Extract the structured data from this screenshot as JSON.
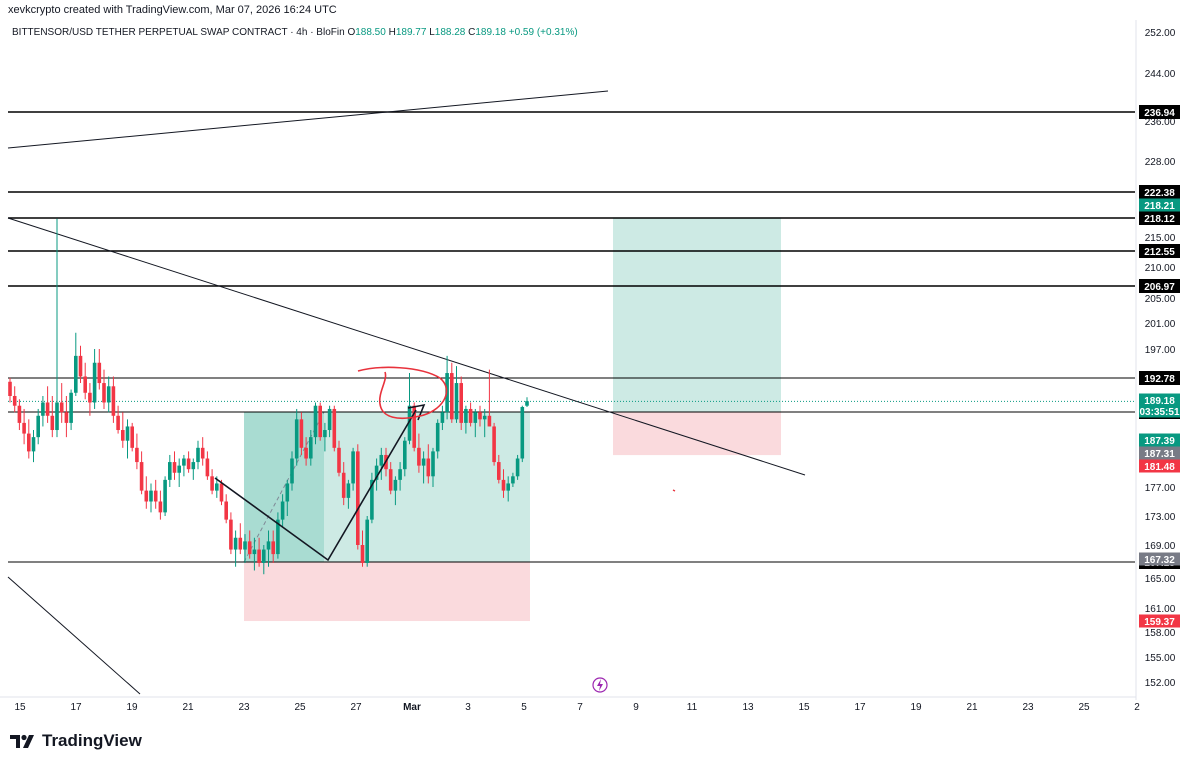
{
  "header": {
    "author_line": "xevkcrypto created with TradingView.com, Mar 07, 2026 16:24 UTC"
  },
  "symbol": {
    "name": "BITTENSOR/USD TETHER PERPETUAL SWAP CONTRACT · 4h · BloFin",
    "open_label": "O",
    "open": "188.50",
    "high_label": "H",
    "high": "189.77",
    "low_label": "L",
    "low": "188.28",
    "close_label": "C",
    "close": "189.18",
    "change": "+0.59 (+0.31%)"
  },
  "logo": {
    "text": "TradingView"
  },
  "colors": {
    "up": "#089981",
    "down": "#f23645",
    "target_zone": "#cdeae4",
    "stop_zone": "#fadadd",
    "drawing": "#131722",
    "annotation": "#e8323c"
  },
  "chart_data": {
    "type": "candlestick",
    "timeframe": "4h",
    "y_axis_ticks": [
      "252.00",
      "244.00",
      "236.00",
      "228.00",
      "222.00",
      "218.00",
      "215.00",
      "210.00",
      "205.00",
      "201.00",
      "197.00",
      "193.00",
      "177.00",
      "173.00",
      "169.00",
      "165.00",
      "161.00",
      "158.00",
      "155.00",
      "152.00"
    ],
    "x_axis_ticks": [
      "15",
      "17",
      "19",
      "21",
      "23",
      "25",
      "27",
      "Mar",
      "3",
      "5",
      "7",
      "9",
      "11",
      "13",
      "15",
      "17",
      "19",
      "21",
      "23",
      "25",
      "2"
    ],
    "horizontal_levels": [
      {
        "value": 236.94,
        "label": "236.94",
        "style": "black"
      },
      {
        "value": 222.38,
        "label": "222.38",
        "style": "black"
      },
      {
        "value": 218.12,
        "label": "218.12",
        "style": "black"
      },
      {
        "value": 212.55,
        "label": "212.55",
        "style": "black"
      },
      {
        "value": 206.97,
        "label": "206.97",
        "style": "black"
      },
      {
        "value": 192.78,
        "label": "192.78",
        "style": "black"
      },
      {
        "value": 187.53,
        "label": "187.53",
        "style": "black"
      },
      {
        "value": 167.13,
        "label": "167.13",
        "style": "black"
      }
    ],
    "price_badges": [
      {
        "label": "218.21",
        "color": "#089981"
      },
      {
        "label": "189.18",
        "sub": "03:35:51",
        "color": "#089981"
      },
      {
        "label": "187.39",
        "color": "#089981"
      },
      {
        "label": "187.31",
        "color": "#787b86"
      },
      {
        "label": "181.48",
        "color": "#f23645"
      },
      {
        "label": "167.32",
        "color": "#787b86"
      },
      {
        "label": "159.37",
        "color": "#f23645"
      }
    ],
    "last_price": 189.18,
    "countdown": "03:35:51",
    "long_position_1": {
      "entry": 187.53,
      "target": 187.53,
      "stop": 159.37
    },
    "long_position_2": {
      "entry": 187.53,
      "target": 218.21,
      "stop": 181.48
    },
    "candles": [
      [
        192.2,
        192.8,
        189.0,
        190.0
      ],
      [
        190.0,
        191.5,
        187.5,
        188.5
      ],
      [
        188.5,
        189.5,
        185.0,
        186.0
      ],
      [
        186.0,
        188.0,
        183.0,
        184.5
      ],
      [
        184.5,
        186.5,
        181.0,
        182.0
      ],
      [
        182.0,
        185.0,
        180.5,
        184.0
      ],
      [
        184.0,
        188.0,
        183.0,
        187.0
      ],
      [
        187.0,
        190.0,
        185.5,
        189.0
      ],
      [
        189.0,
        191.5,
        186.0,
        187.0
      ],
      [
        187.0,
        190.0,
        184.0,
        185.0
      ],
      [
        185.0,
        218.0,
        184.0,
        189.0
      ],
      [
        189.0,
        192.0,
        186.0,
        187.5
      ],
      [
        187.5,
        190.0,
        184.0,
        186.0
      ],
      [
        186.0,
        191.0,
        185.0,
        190.5
      ],
      [
        190.5,
        199.5,
        190.0,
        196.0
      ],
      [
        196.0,
        197.5,
        192.0,
        193.0
      ],
      [
        193.0,
        195.0,
        189.5,
        190.5
      ],
      [
        190.5,
        192.0,
        187.0,
        189.0
      ],
      [
        189.0,
        197.0,
        188.0,
        195.0
      ],
      [
        195.0,
        197.0,
        191.0,
        192.0
      ],
      [
        192.0,
        194.0,
        188.0,
        189.0
      ],
      [
        189.0,
        193.0,
        187.5,
        191.5
      ],
      [
        191.5,
        193.0,
        186.0,
        187.0
      ],
      [
        187.0,
        188.5,
        184.5,
        185.0
      ],
      [
        185.0,
        187.5,
        182.5,
        183.5
      ],
      [
        183.5,
        186.5,
        181.0,
        185.5
      ],
      [
        185.5,
        186.0,
        182.0,
        182.5
      ],
      [
        182.5,
        184.5,
        179.5,
        180.5
      ],
      [
        180.5,
        182.0,
        176.0,
        176.5
      ],
      [
        176.5,
        178.5,
        174.0,
        175.0
      ],
      [
        175.0,
        177.5,
        173.5,
        176.5
      ],
      [
        176.5,
        178.0,
        174.0,
        175.0
      ],
      [
        175.0,
        176.5,
        172.5,
        173.5
      ],
      [
        173.5,
        178.5,
        173.0,
        178.0
      ],
      [
        178.0,
        181.5,
        177.0,
        180.5
      ],
      [
        180.5,
        182.0,
        178.0,
        179.0
      ],
      [
        179.0,
        181.0,
        177.0,
        180.0
      ],
      [
        180.0,
        181.5,
        178.5,
        181.0
      ],
      [
        181.0,
        182.0,
        179.0,
        179.5
      ],
      [
        179.5,
        181.0,
        178.0,
        180.5
      ],
      [
        180.5,
        183.5,
        179.5,
        182.5
      ],
      [
        182.5,
        184.0,
        180.0,
        181.0
      ],
      [
        181.0,
        182.0,
        178.0,
        178.5
      ],
      [
        178.5,
        179.5,
        176.0,
        176.5
      ],
      [
        176.5,
        178.5,
        175.5,
        177.5
      ],
      [
        177.5,
        178.0,
        174.5,
        175.0
      ],
      [
        175.0,
        176.0,
        172.0,
        172.5
      ],
      [
        172.5,
        173.5,
        168.0,
        168.5
      ],
      [
        168.5,
        171.0,
        166.5,
        170.0
      ],
      [
        170.0,
        172.0,
        168.0,
        168.5
      ],
      [
        168.5,
        170.5,
        167.0,
        169.5
      ],
      [
        169.5,
        171.0,
        167.5,
        168.0
      ],
      [
        168.0,
        170.0,
        166.0,
        168.5
      ],
      [
        168.5,
        170.0,
        166.5,
        167.0
      ],
      [
        167.0,
        169.0,
        165.5,
        168.5
      ],
      [
        168.5,
        171.0,
        166.5,
        169.5
      ],
      [
        169.5,
        171.0,
        167.0,
        168.0
      ],
      [
        168.0,
        173.5,
        167.5,
        172.5
      ],
      [
        172.5,
        176.0,
        171.5,
        175.0
      ],
      [
        175.0,
        178.0,
        173.0,
        177.5
      ],
      [
        177.5,
        182.0,
        176.5,
        181.0
      ],
      [
        181.0,
        188.0,
        180.0,
        186.5
      ],
      [
        186.5,
        187.5,
        181.5,
        182.5
      ],
      [
        182.5,
        184.0,
        180.0,
        181.0
      ],
      [
        181.0,
        185.0,
        180.0,
        184.0
      ],
      [
        184.0,
        189.0,
        183.0,
        188.5
      ],
      [
        188.5,
        189.0,
        183.5,
        184.0
      ],
      [
        184.0,
        186.0,
        182.0,
        185.0
      ],
      [
        185.0,
        188.5,
        184.0,
        188.0
      ],
      [
        188.0,
        188.5,
        182.0,
        182.5
      ],
      [
        182.5,
        183.5,
        178.5,
        179.0
      ],
      [
        179.0,
        180.5,
        174.5,
        175.5
      ],
      [
        175.5,
        178.0,
        174.0,
        177.5
      ],
      [
        177.5,
        182.5,
        176.5,
        182.0
      ],
      [
        182.0,
        183.0,
        168.5,
        169.0
      ],
      [
        169.0,
        171.0,
        166.5,
        167.0
      ],
      [
        167.0,
        173.0,
        166.5,
        172.5
      ],
      [
        172.5,
        179.0,
        172.0,
        178.0
      ],
      [
        178.0,
        181.0,
        176.5,
        180.0
      ],
      [
        180.0,
        182.5,
        178.0,
        181.5
      ],
      [
        181.5,
        182.5,
        178.5,
        179.5
      ],
      [
        179.5,
        180.5,
        176.0,
        176.5
      ],
      [
        176.5,
        178.5,
        174.5,
        178.0
      ],
      [
        178.0,
        180.5,
        176.5,
        179.5
      ],
      [
        179.5,
        184.0,
        178.5,
        183.5
      ],
      [
        183.5,
        193.5,
        183.0,
        188.5
      ],
      [
        188.5,
        189.0,
        182.0,
        182.5
      ],
      [
        182.5,
        184.5,
        179.0,
        180.0
      ],
      [
        180.0,
        182.0,
        177.5,
        181.0
      ],
      [
        181.0,
        183.0,
        177.5,
        178.5
      ],
      [
        178.5,
        182.5,
        177.0,
        182.0
      ],
      [
        182.0,
        186.5,
        181.0,
        186.0
      ],
      [
        186.0,
        188.5,
        185.0,
        187.5
      ],
      [
        187.5,
        196.0,
        186.5,
        193.5
      ],
      [
        193.5,
        195.0,
        186.0,
        186.5
      ],
      [
        186.5,
        194.5,
        186.0,
        192.0
      ],
      [
        192.0,
        193.0,
        185.0,
        186.0
      ],
      [
        186.0,
        188.5,
        184.5,
        188.0
      ],
      [
        188.0,
        189.0,
        185.5,
        186.0
      ],
      [
        186.0,
        188.0,
        184.0,
        187.5
      ],
      [
        187.5,
        188.5,
        185.5,
        186.5
      ],
      [
        186.5,
        188.0,
        184.0,
        187.0
      ],
      [
        187.0,
        194.0,
        185.5,
        185.5
      ],
      [
        185.5,
        186.0,
        180.0,
        180.5
      ],
      [
        180.5,
        181.5,
        177.5,
        178.0
      ],
      [
        178.0,
        179.5,
        175.5,
        176.5
      ],
      [
        176.5,
        178.5,
        175.0,
        177.5
      ],
      [
        177.5,
        179.0,
        177.0,
        178.5
      ],
      [
        178.5,
        181.5,
        178.0,
        181.0
      ],
      [
        181.0,
        188.5,
        180.5,
        188.3
      ],
      [
        188.5,
        189.8,
        188.3,
        189.2
      ]
    ],
    "drawings": {
      "descending_trendline": "from top-left (Feb 14, 218) to (Mar 9, 181)",
      "ascending_trendline": "top left to upper right near 236-242",
      "zigzag_arrow": "down from 180 to 167, then up arrow to 190",
      "red_hand_circle": "annotation near 190-196 around Mar 1"
    }
  }
}
